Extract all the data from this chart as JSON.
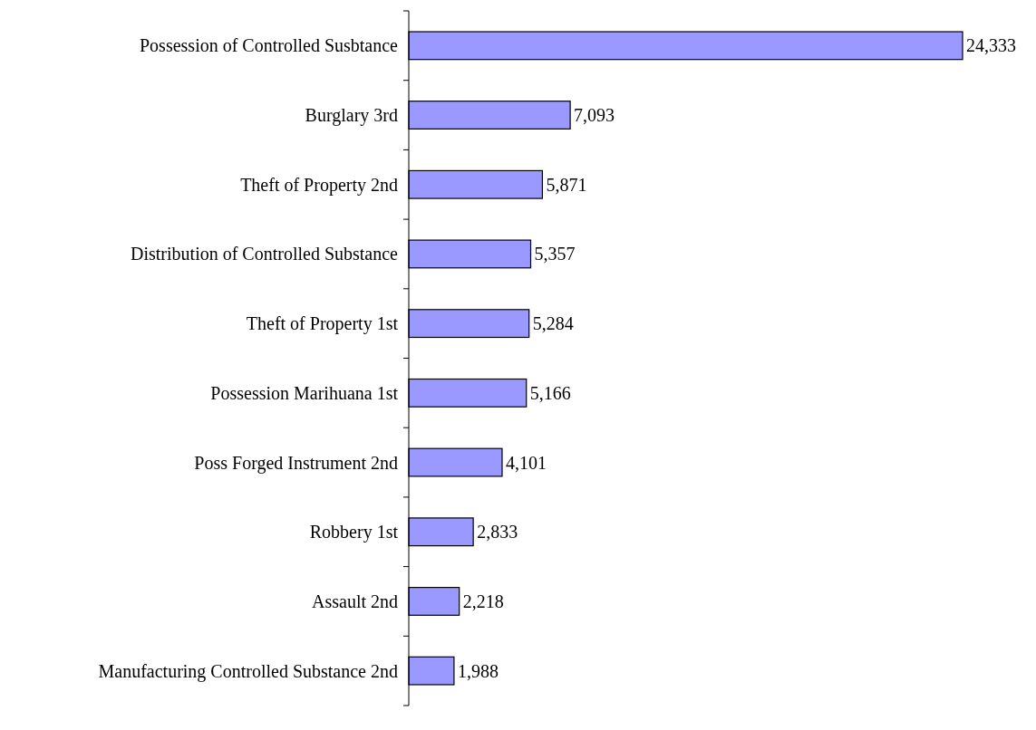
{
  "chart_data": {
    "type": "bar",
    "orientation": "horizontal",
    "categories": [
      "Possession of Controlled Susbtance",
      "Burglary 3rd",
      "Theft of Property 2nd",
      "Distribution of Controlled Substance",
      "Theft of Property 1st",
      "Possession Marihuana 1st",
      "Poss Forged Instrument 2nd",
      "Robbery 1st",
      "Assault 2nd",
      "Manufacturing Controlled Substance 2nd"
    ],
    "values": [
      24333,
      7093,
      5871,
      5357,
      5284,
      5166,
      4101,
      2833,
      2218,
      1988
    ],
    "value_labels": [
      "24,333",
      "7,093",
      "5,871",
      "5,357",
      "5,284",
      "5,166",
      "4,101",
      "2,833",
      "2,218",
      "1,988"
    ],
    "color": "#9999ff"
  }
}
